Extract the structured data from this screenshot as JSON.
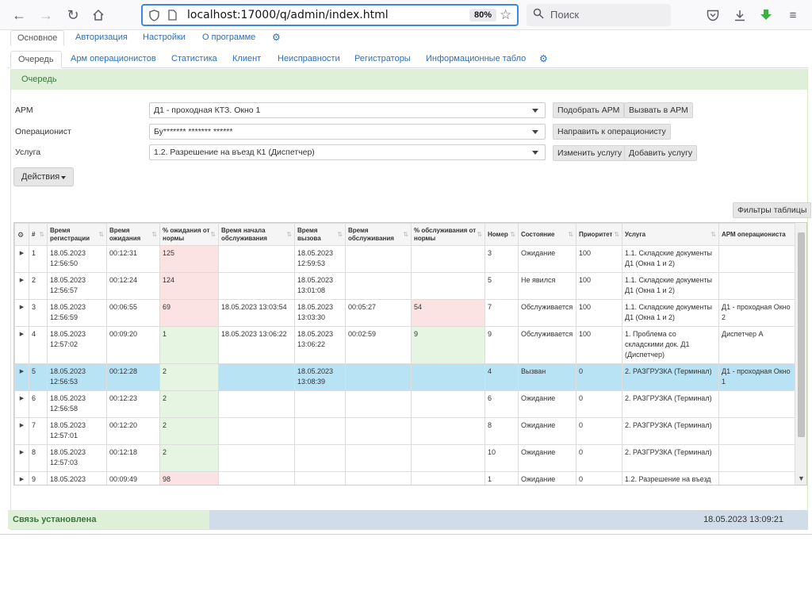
{
  "browser": {
    "url": "localhost:17000/q/admin/index.html",
    "zoom": "80%",
    "search_placeholder": "Поиск"
  },
  "main_tabs": [
    {
      "label": "Основное",
      "active": true
    },
    {
      "label": "Авторизация"
    },
    {
      "label": "Настройки"
    },
    {
      "label": "О программе"
    }
  ],
  "sub_tabs": [
    {
      "label": "Очередь",
      "active": true
    },
    {
      "label": "Арм операционистов"
    },
    {
      "label": "Статистика"
    },
    {
      "label": "Клиент"
    },
    {
      "label": "Неисправности"
    },
    {
      "label": "Регистраторы"
    },
    {
      "label": "Информационные табло"
    }
  ],
  "panel": {
    "title": "Очередь",
    "arm_label": "АРМ",
    "arm_value": "Д1 - проходная КТЗ. Окно 1",
    "operator_label": "Операционист",
    "operator_value": "Бу******* ******* ******",
    "service_label": "Услуга",
    "service_value": "1.2. Разрешение на въезд К1 (Диспетчер)",
    "btn_pick_arm": "Подобрать АРМ",
    "btn_call_arm": "Вызвать в АРМ",
    "btn_send_operator": "Направить к операционисту",
    "btn_change_service": "Изменить услугу",
    "btn_add_service": "Добавить услугу",
    "btn_actions": "Действия",
    "btn_filters": "Фильтры таблицы"
  },
  "grid": {
    "headers": {
      "num": "#",
      "reg_time": "Время регистрации",
      "wait_time": "Время ожидания",
      "wait_pct": "% ожидания от нормы",
      "svc_start": "Время начала обслуживания",
      "call_time": "Время вызова",
      "svc_time": "Время обслуживания",
      "svc_pct": "% обслуживания от нормы",
      "number": "Номер",
      "state": "Состояние",
      "priority": "Приоритет",
      "service": "Услуга",
      "arm": "АРМ операциониста"
    },
    "rows": [
      {
        "n": "1",
        "reg1": "18.05.2023",
        "reg2": "12:56:50",
        "wait": "00:12:31",
        "wpct": "125",
        "wcolor": "pink",
        "start": "",
        "call1": "18.05.2023",
        "call2": "12:59:53",
        "svc": "",
        "spct": "",
        "scolor": "",
        "num": "3",
        "state": "Ожидание",
        "prio": "100",
        "service": "1.1. Складские документы Д1 (Окна 1 и 2)",
        "arm": ""
      },
      {
        "n": "2",
        "reg1": "18.05.2023",
        "reg2": "12:56:57",
        "wait": "00:12:24",
        "wpct": "124",
        "wcolor": "pink",
        "start": "",
        "call1": "18.05.2023",
        "call2": "13:01:08",
        "svc": "",
        "spct": "",
        "scolor": "",
        "num": "5",
        "state": "Не явился",
        "prio": "100",
        "service": "1.1. Складские документы Д1 (Окна 1 и 2)",
        "arm": ""
      },
      {
        "n": "3",
        "reg1": "18.05.2023",
        "reg2": "12:56:59",
        "wait": "00:06:55",
        "wpct": "69",
        "wcolor": "pink",
        "start": "18.05.2023 13:03:54",
        "call1": "18.05.2023",
        "call2": "13:03:30",
        "svc": "00:05:27",
        "spct": "54",
        "scolor": "pink",
        "num": "7",
        "state": "Обслуживается",
        "prio": "100",
        "service": "1.1. Складские документы Д1 (Окна 1 и 2)",
        "arm": "Д1 - проходная Окно 2"
      },
      {
        "n": "4",
        "reg1": "18.05.2023",
        "reg2": "12:57:02",
        "wait": "00:09:20",
        "wpct": "1",
        "wcolor": "green",
        "start": "18.05.2023 13:06:22",
        "call1": "18.05.2023",
        "call2": "13:06:22",
        "svc": "00:02:59",
        "spct": "9",
        "scolor": "green",
        "num": "9",
        "state": "Обслуживается",
        "prio": "100",
        "service": "1. Проблема со складскими док. Д1 (Диспетчер)",
        "arm": "Диспетчер А",
        "tall": true
      },
      {
        "n": "5",
        "reg1": "18.05.2023",
        "reg2": "12:56:53",
        "wait": "00:12:28",
        "wpct": "2",
        "wcolor": "green",
        "start": "",
        "call1": "18.05.2023",
        "call2": "13:08:39",
        "svc": "",
        "spct": "",
        "scolor": "",
        "num": "4",
        "state": "Вызван",
        "prio": "0",
        "service": "2. РАЗГРУЗКА (Терминал)",
        "arm": "Д1 - проходная Окно 1",
        "selected": true
      },
      {
        "n": "6",
        "reg1": "18.05.2023",
        "reg2": "12:56:58",
        "wait": "00:12:23",
        "wpct": "2",
        "wcolor": "green",
        "start": "",
        "call1": "",
        "call2": "",
        "svc": "",
        "spct": "",
        "scolor": "",
        "num": "6",
        "state": "Ожидание",
        "prio": "0",
        "service": "2. РАЗГРУЗКА (Терминал)",
        "arm": ""
      },
      {
        "n": "7",
        "reg1": "18.05.2023",
        "reg2": "12:57:01",
        "wait": "00:12:20",
        "wpct": "2",
        "wcolor": "green",
        "start": "",
        "call1": "",
        "call2": "",
        "svc": "",
        "spct": "",
        "scolor": "",
        "num": "8",
        "state": "Ожидание",
        "prio": "0",
        "service": "2. РАЗГРУЗКА (Терминал)",
        "arm": ""
      },
      {
        "n": "8",
        "reg1": "18.05.2023",
        "reg2": "12:57:03",
        "wait": "00:12:18",
        "wpct": "2",
        "wcolor": "green",
        "start": "",
        "call1": "",
        "call2": "",
        "svc": "",
        "spct": "",
        "scolor": "",
        "num": "10",
        "state": "Ожидание",
        "prio": "0",
        "service": "2. РАЗГРУЗКА (Терминал)",
        "arm": ""
      },
      {
        "n": "9",
        "reg1": "18.05.2023",
        "reg2": "",
        "wait": "00:09:49",
        "wpct": "98",
        "wcolor": "pink",
        "start": "",
        "call1": "",
        "call2": "",
        "svc": "",
        "spct": "",
        "scolor": "",
        "num": "1",
        "state": "Ожидание",
        "prio": "0",
        "service": "1.2. Разрешение на въезд",
        "arm": ""
      }
    ]
  },
  "status": {
    "connection": "Связь установлена",
    "datetime": "18.05.2023 13:09:21"
  }
}
